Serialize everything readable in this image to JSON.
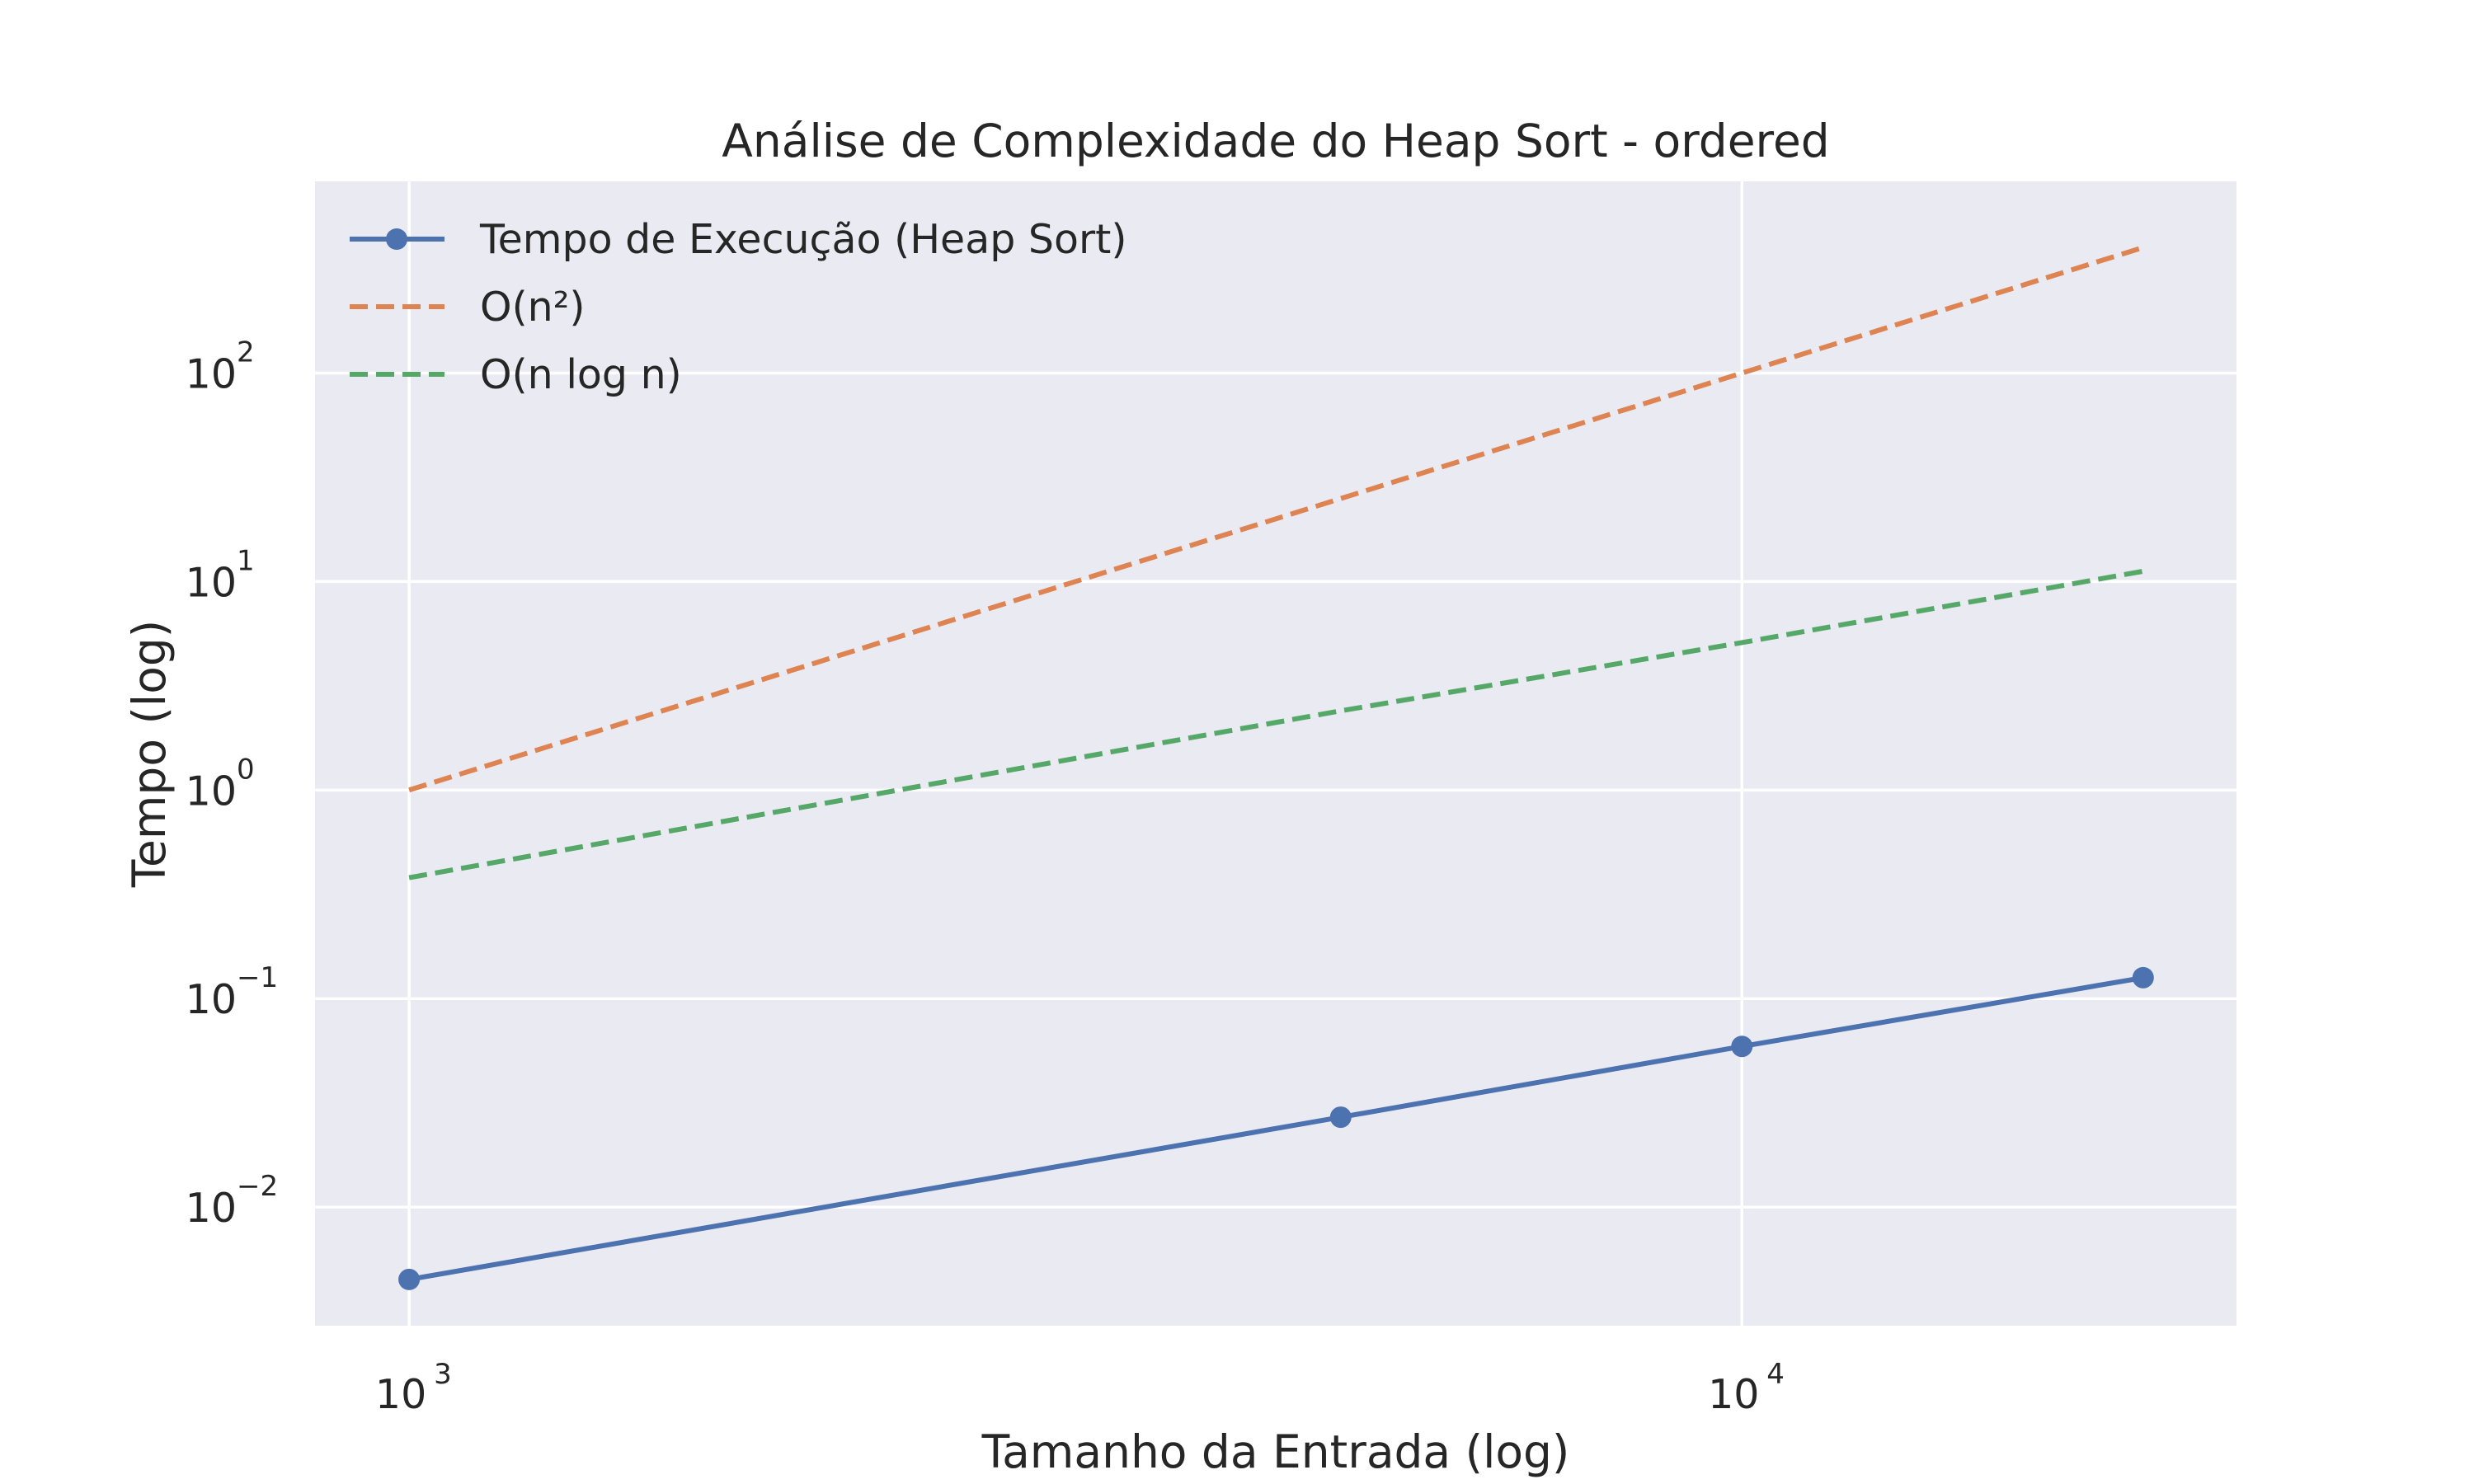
{
  "chart_data": {
    "type": "line",
    "title": "Análise de Complexidade do Heap Sort - ordered",
    "xlabel": "Tamanho da Entrada (log)",
    "ylabel": "Tempo (log)",
    "xscale": "log",
    "yscale": "log",
    "xlim": [
      850,
      23500
    ],
    "ylim": [
      0.0027,
      830
    ],
    "grid": true,
    "legend_position": "top-left",
    "x_ticks": [
      {
        "value": 1000,
        "base": "10",
        "exp": "3"
      },
      {
        "value": 10000,
        "base": "10",
        "exp": "4"
      }
    ],
    "y_ticks": [
      {
        "value": 0.01,
        "base": "10",
        "exp": "−2"
      },
      {
        "value": 0.1,
        "base": "10",
        "exp": "−1"
      },
      {
        "value": 1,
        "base": "10",
        "exp": "0"
      },
      {
        "value": 10,
        "base": "10",
        "exp": "1"
      },
      {
        "value": 100,
        "base": "10",
        "exp": "2"
      }
    ],
    "series": [
      {
        "name": "Tempo de Execução (Heap Sort)",
        "color": "#4C72B0",
        "style": "solid",
        "marker": "circle",
        "x": [
          1000,
          5000,
          10000,
          20000
        ],
        "y": [
          0.0045,
          0.027,
          0.059,
          0.126
        ]
      },
      {
        "name": "O(n²)",
        "color": "#DD8452",
        "style": "dashed",
        "marker": "none",
        "x": [
          1000,
          5000,
          10000,
          20000
        ],
        "y": [
          1.0,
          25.0,
          100.0,
          400.0
        ]
      },
      {
        "name": "O(n log n)",
        "color": "#55A868",
        "style": "dashed",
        "marker": "none",
        "x": [
          1000,
          5000,
          10000,
          20000
        ],
        "y": [
          0.38,
          2.4,
          5.1,
          11.2
        ]
      }
    ]
  },
  "colors": {
    "plot_background": "#EAEAF2",
    "grid": "#FFFFFF",
    "text": "#262626"
  }
}
